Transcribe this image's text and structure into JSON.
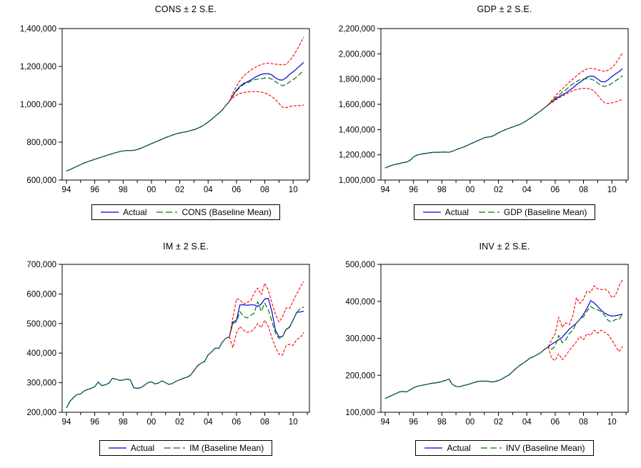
{
  "page": {
    "background": "#ffffff"
  },
  "colors": {
    "actual": "#0000dd",
    "baseline": "#007a00",
    "band": "#ff0000",
    "axis": "#000000",
    "text": "#000000"
  },
  "x_axis": {
    "range": [
      1993.7,
      2011.15
    ],
    "major_ticks": [
      1994,
      1996,
      1998,
      2000,
      2002,
      2004,
      2006,
      2008,
      2010
    ],
    "tick_labels": [
      "94",
      "96",
      "98",
      "00",
      "02",
      "04",
      "06",
      "08",
      "10"
    ],
    "minor_ticks": [
      1995,
      1997,
      1999,
      2001,
      2003,
      2005,
      2007,
      2009,
      2011
    ]
  },
  "series_meta": {
    "frequency": "quarterly",
    "x_start": 1994.0,
    "x_step": 0.25,
    "forecast_x_start": 2005.75,
    "unit_multiplier": 1000,
    "note": "history/actual/baseline/upper/lower values are in thousands; multiply by unit_multiplier for axis units"
  },
  "chart_data": [
    {
      "type": "line",
      "variable": "CONS",
      "title": "CONS ± 2 S.E.",
      "legend": [
        "Actual",
        "CONS (Baseline Mean)"
      ],
      "ylim": [
        600000,
        1400000
      ],
      "ytick_step": 200000,
      "history": [
        648,
        655,
        664,
        673,
        681,
        690,
        697,
        703,
        710,
        716,
        722,
        728,
        734,
        740,
        745,
        750,
        754,
        756,
        756,
        757,
        761,
        768,
        776,
        784,
        792,
        800,
        808,
        816,
        824,
        831,
        838,
        844,
        849,
        852,
        856,
        861,
        866,
        873,
        882,
        893,
        906,
        921,
        937,
        953,
        970,
        994,
        1015
      ],
      "actual": [
        1048,
        1075,
        1095,
        1110,
        1118,
        1128,
        1140,
        1150,
        1158,
        1161,
        1162,
        1155,
        1140,
        1130,
        1128,
        1140,
        1158,
        1172,
        1188,
        1205,
        1222
      ],
      "baseline": [
        1045,
        1070,
        1090,
        1105,
        1112,
        1122,
        1130,
        1133,
        1135,
        1138,
        1140,
        1133,
        1120,
        1108,
        1098,
        1105,
        1118,
        1130,
        1145,
        1162,
        1180
      ],
      "upper": [
        1060,
        1095,
        1125,
        1150,
        1165,
        1180,
        1192,
        1202,
        1210,
        1215,
        1218,
        1215,
        1212,
        1210,
        1208,
        1212,
        1230,
        1255,
        1285,
        1320,
        1355
      ],
      "lower": [
        1035,
        1048,
        1057,
        1062,
        1065,
        1067,
        1068,
        1067,
        1065,
        1060,
        1052,
        1040,
        1025,
        1005,
        985,
        982,
        988,
        992,
        993,
        994,
        996
      ]
    },
    {
      "type": "line",
      "variable": "GDP",
      "title": "GDP ± 2 S.E.",
      "legend": [
        "Actual",
        "GDP (Baseline Mean)"
      ],
      "ylim": [
        1000000,
        2200000
      ],
      "ytick_step": 200000,
      "history": [
        1095,
        1108,
        1118,
        1125,
        1130,
        1138,
        1142,
        1155,
        1182,
        1198,
        1205,
        1210,
        1213,
        1218,
        1220,
        1220,
        1221,
        1222,
        1220,
        1228,
        1240,
        1250,
        1260,
        1272,
        1285,
        1298,
        1310,
        1322,
        1335,
        1340,
        1345,
        1358,
        1375,
        1388,
        1400,
        1410,
        1420,
        1432,
        1440,
        1455,
        1472,
        1490,
        1510,
        1530,
        1550,
        1572,
        1595
      ],
      "actual": [
        1618,
        1640,
        1658,
        1675,
        1690,
        1710,
        1730,
        1755,
        1775,
        1795,
        1815,
        1825,
        1820,
        1800,
        1780,
        1778,
        1795,
        1820,
        1840,
        1858,
        1882
      ],
      "baseline": [
        1622,
        1650,
        1672,
        1695,
        1715,
        1740,
        1762,
        1780,
        1795,
        1800,
        1803,
        1800,
        1790,
        1768,
        1748,
        1742,
        1750,
        1765,
        1785,
        1805,
        1827
      ],
      "upper": [
        1630,
        1665,
        1695,
        1722,
        1748,
        1775,
        1800,
        1825,
        1848,
        1866,
        1880,
        1886,
        1882,
        1874,
        1866,
        1862,
        1870,
        1890,
        1920,
        1962,
        2010
      ],
      "lower": [
        1612,
        1632,
        1650,
        1665,
        1680,
        1695,
        1708,
        1718,
        1723,
        1726,
        1726,
        1722,
        1705,
        1672,
        1638,
        1612,
        1607,
        1612,
        1618,
        1628,
        1640
      ]
    },
    {
      "type": "line",
      "variable": "IM",
      "title": "IM ± 2 S.E.",
      "legend": [
        "Actual",
        "IM (Baseline Mean)"
      ],
      "ylim": [
        200000,
        700000
      ],
      "ytick_step": 100000,
      "history": [
        215,
        237,
        250,
        260,
        262,
        272,
        277,
        281,
        287,
        302,
        290,
        293,
        298,
        315,
        312,
        308,
        309,
        312,
        310,
        283,
        281,
        283,
        291,
        300,
        303,
        296,
        299,
        306,
        300,
        294,
        298,
        305,
        310,
        315,
        318,
        325,
        340,
        357,
        366,
        372,
        394,
        404,
        417,
        416,
        437,
        450,
        455
      ],
      "actual": [
        505,
        511,
        563,
        563,
        562,
        563,
        563,
        558,
        566,
        583,
        585,
        540,
        478,
        455,
        456,
        480,
        488,
        512,
        538,
        539,
        542
      ],
      "baseline": [
        500,
        506,
        540,
        524,
        519,
        527,
        536,
        574,
        541,
        569,
        546,
        508,
        468,
        449,
        455,
        479,
        487,
        513,
        536,
        551,
        555
      ],
      "upper": [
        520,
        583,
        580,
        566,
        572,
        576,
        603,
        620,
        597,
        636,
        612,
        570,
        532,
        505,
        522,
        553,
        551,
        576,
        600,
        622,
        643
      ],
      "lower": [
        418,
        468,
        490,
        477,
        470,
        472,
        482,
        500,
        486,
        511,
        490,
        452,
        420,
        396,
        393,
        425,
        430,
        426,
        446,
        452,
        470
      ]
    },
    {
      "type": "line",
      "variable": "INV",
      "title": "INV ± 2 S.E.",
      "legend": [
        "Actual",
        "INV (Baseline Mean)"
      ],
      "ylim": [
        100000,
        500000
      ],
      "ytick_step": 100000,
      "history": [
        137,
        142,
        146,
        150,
        155,
        156,
        155,
        160,
        166,
        170,
        172,
        174,
        176,
        178,
        179,
        181,
        183,
        186,
        190,
        175,
        170,
        169,
        172,
        174,
        177,
        180,
        183,
        184,
        184,
        184,
        182,
        183,
        186,
        190,
        196,
        201,
        210,
        219,
        227,
        233,
        240,
        247,
        251,
        256,
        262,
        270,
        277
      ],
      "actual": [
        284,
        290,
        296,
        303,
        314,
        325,
        333,
        341,
        352,
        365,
        381,
        402,
        396,
        386,
        376,
        368,
        363,
        360,
        361,
        363,
        365
      ],
      "baseline": [
        270,
        279,
        308,
        288,
        296,
        313,
        322,
        341,
        352,
        358,
        374,
        386,
        380,
        377,
        372,
        362,
        348,
        344,
        351,
        350,
        366
      ],
      "upper": [
        296,
        312,
        357,
        330,
        342,
        337,
        361,
        410,
        394,
        406,
        428,
        424,
        442,
        434,
        432,
        433,
        427,
        410,
        416,
        440,
        459
      ],
      "lower": [
        246,
        240,
        258,
        242,
        253,
        268,
        279,
        291,
        305,
        296,
        313,
        308,
        322,
        314,
        322,
        316,
        309,
        295,
        280,
        264,
        278
      ]
    }
  ]
}
